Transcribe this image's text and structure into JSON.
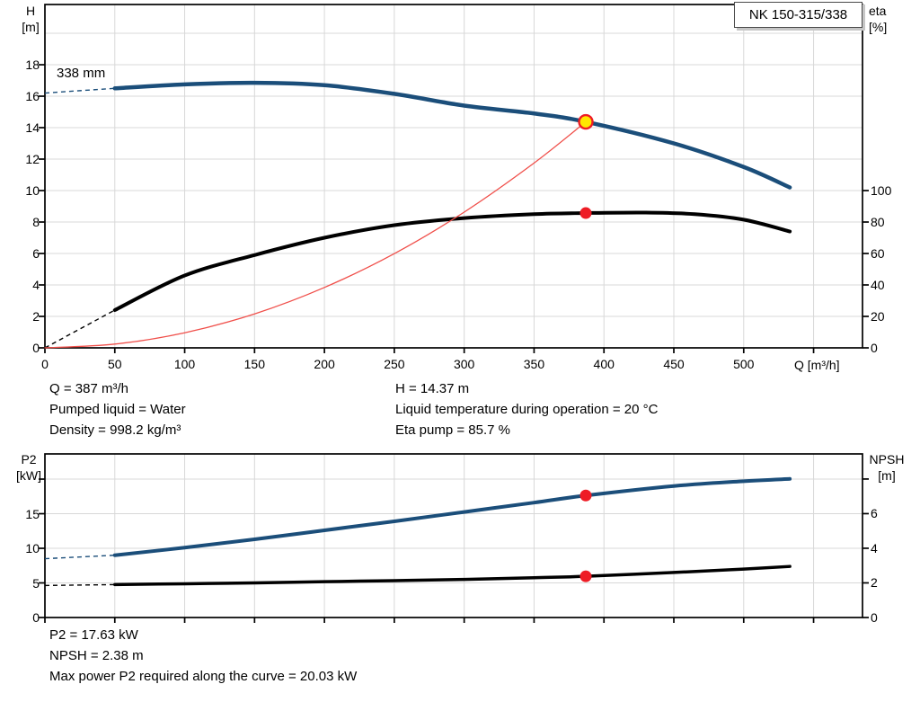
{
  "colors": {
    "curve_blue": "#1b4e7a",
    "curve_black": "#000000",
    "system_red": "#f04f4a",
    "duty_red": "#ee1c25",
    "duty_yellow": "#ffe600",
    "grid": "#d8d8d8",
    "axis": "#000000"
  },
  "operating_point": {
    "flow": "Q = 387 m³/h",
    "pumped_liquid": "Pumped liquid = Water",
    "density": "Density = 998.2 kg/m³",
    "head": "H = 14.37 m",
    "liquid_temperature": "Liquid temperature during operation = 20 °C",
    "eta_pump": "Eta pump = 85.7 %"
  },
  "power_point": {
    "p2": "P2 = 17.63 kW",
    "npsh": "NPSH = 2.38 m",
    "max_power": "Max power P2 required along the curve = 20.03 kW"
  },
  "chart_data": [
    {
      "type": "line",
      "title": "NK 150-315/338",
      "impeller_label": "338 mm",
      "x_axis": {
        "title": "Q [m³/h]",
        "min": 0,
        "max": 585,
        "grid": [
          50,
          100,
          150,
          200,
          250,
          300,
          350,
          400,
          450,
          500,
          550
        ],
        "ticks": [
          {
            "v": 0,
            "label": "0"
          },
          {
            "v": 50,
            "label": "50"
          },
          {
            "v": 100,
            "label": "100"
          },
          {
            "v": 150,
            "label": "150"
          },
          {
            "v": 200,
            "label": "200"
          },
          {
            "v": 250,
            "label": "250"
          },
          {
            "v": 300,
            "label": "300"
          },
          {
            "v": 350,
            "label": "350"
          },
          {
            "v": 400,
            "label": "400"
          },
          {
            "v": 450,
            "label": "450"
          },
          {
            "v": 500,
            "label": "500"
          },
          {
            "v": 550,
            "label": ""
          }
        ]
      },
      "left_axis": {
        "title": "H",
        "unit": "[m]",
        "min": 0,
        "max": 21.83,
        "grid": [
          2,
          4,
          6,
          8,
          10,
          12,
          14,
          16,
          18,
          20
        ],
        "ticks": [
          {
            "v": 0,
            "label": "0"
          },
          {
            "v": 2,
            "label": "2"
          },
          {
            "v": 4,
            "label": "4"
          },
          {
            "v": 6,
            "label": "6"
          },
          {
            "v": 8,
            "label": "8"
          },
          {
            "v": 10,
            "label": "10"
          },
          {
            "v": 12,
            "label": "12"
          },
          {
            "v": 14,
            "label": "14"
          },
          {
            "v": 16,
            "label": "16"
          },
          {
            "v": 18,
            "label": "18"
          }
        ]
      },
      "right_axis": {
        "title": "eta",
        "unit": "[%]",
        "min": 0,
        "max": 218.3,
        "ticks": [
          {
            "v": 0,
            "label": "0"
          },
          {
            "v": 20,
            "label": "20"
          },
          {
            "v": 40,
            "label": "40"
          },
          {
            "v": 60,
            "label": "60"
          },
          {
            "v": 80,
            "label": "80"
          },
          {
            "v": 100,
            "label": "100"
          }
        ]
      },
      "series": [
        {
          "name": "head-curve",
          "axis": "left",
          "color_key": "curve_blue",
          "width": 4.5,
          "lead": [
            [
              0,
              16.2
            ],
            [
              50,
              16.5
            ]
          ],
          "points": [
            [
              50,
              16.5
            ],
            [
              100,
              16.75
            ],
            [
              150,
              16.85
            ],
            [
              200,
              16.7
            ],
            [
              250,
              16.15
            ],
            [
              300,
              15.4
            ],
            [
              350,
              14.9
            ],
            [
              387,
              14.37
            ],
            [
              450,
              13.0
            ],
            [
              500,
              11.5
            ],
            [
              533,
              10.2
            ]
          ]
        },
        {
          "name": "eta-curve",
          "axis": "right",
          "color_key": "curve_black",
          "width": 4,
          "lead": [
            [
              0,
              0
            ],
            [
              50,
              24
            ]
          ],
          "points": [
            [
              50,
              24
            ],
            [
              100,
              46
            ],
            [
              150,
              59
            ],
            [
              200,
              70
            ],
            [
              250,
              78
            ],
            [
              300,
              82.5
            ],
            [
              350,
              85
            ],
            [
              387,
              85.7
            ],
            [
              430,
              86
            ],
            [
              465,
              85
            ],
            [
              500,
              81.5
            ],
            [
              533,
              74
            ]
          ]
        },
        {
          "name": "system-curve",
          "axis": "left",
          "color_key": "system_red",
          "width": 1.3,
          "points": [
            [
              0,
              0
            ],
            [
              50,
              0.24
            ],
            [
              100,
              0.96
            ],
            [
              150,
              2.16
            ],
            [
              200,
              3.84
            ],
            [
              250,
              5.99
            ],
            [
              300,
              8.63
            ],
            [
              350,
              11.75
            ],
            [
              387,
              14.37
            ]
          ]
        }
      ],
      "duty_points": [
        {
          "name": "duty-point-head",
          "q": 387,
          "v": 14.37,
          "axis": "left",
          "style": "target"
        },
        {
          "name": "duty-point-eta",
          "q": 387,
          "v": 85.7,
          "axis": "right",
          "style": "dot"
        }
      ]
    },
    {
      "type": "line",
      "title": "",
      "x_axis": {
        "title": "",
        "min": 0,
        "max": 585,
        "grid": [
          50,
          100,
          150,
          200,
          250,
          300,
          350,
          400,
          450,
          500,
          550
        ],
        "ticks": [
          {
            "v": 0,
            "label": ""
          },
          {
            "v": 50,
            "label": ""
          },
          {
            "v": 100,
            "label": ""
          },
          {
            "v": 150,
            "label": ""
          },
          {
            "v": 200,
            "label": ""
          },
          {
            "v": 250,
            "label": ""
          },
          {
            "v": 300,
            "label": ""
          },
          {
            "v": 350,
            "label": ""
          },
          {
            "v": 400,
            "label": ""
          },
          {
            "v": 450,
            "label": ""
          },
          {
            "v": 500,
            "label": ""
          },
          {
            "v": 550,
            "label": ""
          }
        ]
      },
      "left_axis": {
        "title": "P2",
        "unit": "[kW]",
        "min": 0,
        "max": 23.64,
        "grid": [
          5,
          10,
          15,
          20
        ],
        "ticks": [
          {
            "v": 0,
            "label": "0"
          },
          {
            "v": 5,
            "label": "5"
          },
          {
            "v": 10,
            "label": "10"
          },
          {
            "v": 15,
            "label": "15"
          },
          {
            "v": 20,
            "label": ""
          }
        ]
      },
      "right_axis": {
        "title": "NPSH",
        "unit": "[m]",
        "min": 0,
        "max": 9.45,
        "ticks": [
          {
            "v": 0,
            "label": "0"
          },
          {
            "v": 2,
            "label": "2"
          },
          {
            "v": 4,
            "label": "4"
          },
          {
            "v": 6,
            "label": "6"
          },
          {
            "v": 8,
            "label": ""
          }
        ]
      },
      "series": [
        {
          "name": "p2-curve",
          "axis": "left",
          "color_key": "curve_blue",
          "width": 4,
          "lead": [
            [
              0,
              8.5
            ],
            [
              50,
              9.0
            ]
          ],
          "points": [
            [
              50,
              9.0
            ],
            [
              100,
              10.1
            ],
            [
              150,
              11.3
            ],
            [
              200,
              12.6
            ],
            [
              250,
              13.9
            ],
            [
              300,
              15.25
            ],
            [
              350,
              16.6
            ],
            [
              387,
              17.63
            ],
            [
              450,
              19.0
            ],
            [
              500,
              19.7
            ],
            [
              533,
              20.03
            ]
          ]
        },
        {
          "name": "npsh-curve",
          "axis": "right",
          "color_key": "curve_black",
          "width": 3.5,
          "lead": [
            [
              0,
              1.85
            ],
            [
              50,
              1.9
            ]
          ],
          "points": [
            [
              50,
              1.9
            ],
            [
              100,
              1.95
            ],
            [
              150,
              2.0
            ],
            [
              200,
              2.07
            ],
            [
              250,
              2.13
            ],
            [
              300,
              2.2
            ],
            [
              350,
              2.3
            ],
            [
              387,
              2.38
            ],
            [
              450,
              2.6
            ],
            [
              500,
              2.8
            ],
            [
              533,
              2.95
            ]
          ]
        }
      ],
      "duty_points": [
        {
          "name": "duty-point-p2",
          "q": 387,
          "v": 17.63,
          "axis": "left",
          "style": "dot"
        },
        {
          "name": "duty-point-npsh",
          "q": 387,
          "v": 2.38,
          "axis": "right",
          "style": "dot"
        }
      ]
    }
  ]
}
